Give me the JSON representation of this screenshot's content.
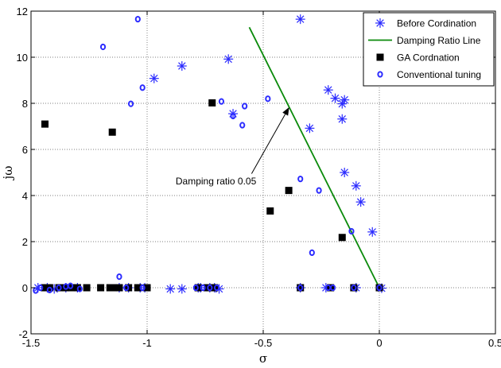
{
  "chart_data": {
    "type": "scatter",
    "title": "",
    "xlabel": "σ",
    "ylabel": "jω",
    "xlim": [
      -1.5,
      0.5
    ],
    "ylim": [
      -2,
      12
    ],
    "xticks": [
      -1.5,
      -1,
      -0.5,
      0,
      0.5
    ],
    "yticks": [
      -2,
      0,
      2,
      4,
      6,
      8,
      10,
      12
    ],
    "xtick_labels": [
      "-1.5",
      "-1",
      "-0.5",
      "0",
      "0.5"
    ],
    "ytick_labels": [
      "-2",
      "0",
      "2",
      "4",
      "6",
      "8",
      "10",
      "12"
    ],
    "grid": true,
    "legend_position": "top-right",
    "colors": {
      "blue": "#2b2bff",
      "green": "#0a8a0a",
      "black": "#000000"
    },
    "series": [
      {
        "name": "Before Cordination",
        "marker": "asterisk",
        "color": "#2b2bff",
        "points": [
          [
            -0.34,
            11.65
          ],
          [
            -0.85,
            9.62
          ],
          [
            -0.65,
            9.92
          ],
          [
            -0.97,
            9.08
          ],
          [
            -0.63,
            7.55
          ],
          [
            -0.3,
            6.92
          ],
          [
            -0.22,
            8.58
          ],
          [
            -0.19,
            8.22
          ],
          [
            -0.15,
            8.15
          ],
          [
            -0.16,
            7.98
          ],
          [
            -0.16,
            7.32
          ],
          [
            -0.15,
            5.0
          ],
          [
            -0.1,
            4.42
          ],
          [
            -0.08,
            3.72
          ],
          [
            -0.03,
            2.42
          ],
          [
            -1.47,
            0.0
          ],
          [
            -1.43,
            0.0
          ],
          [
            -1.4,
            -0.05
          ],
          [
            -1.35,
            0.0
          ],
          [
            -1.3,
            0.0
          ],
          [
            -1.12,
            0.0
          ],
          [
            -1.08,
            0.0
          ],
          [
            -1.03,
            0.0
          ],
          [
            -1.01,
            0.0
          ],
          [
            -0.9,
            -0.05
          ],
          [
            -0.85,
            -0.05
          ],
          [
            -0.78,
            0.0
          ],
          [
            -0.77,
            0.0
          ],
          [
            -0.73,
            0.0
          ],
          [
            -0.71,
            0.0
          ],
          [
            -0.69,
            -0.05
          ],
          [
            -0.34,
            0.0
          ],
          [
            -0.23,
            0.0
          ],
          [
            -0.1,
            0.0
          ],
          [
            0.01,
            -0.02
          ]
        ]
      },
      {
        "name": "Damping Ratio Line",
        "marker": "line",
        "color": "#0a8a0a",
        "points": [
          [
            -0.56,
            11.3
          ],
          [
            0.0,
            0.0
          ]
        ]
      },
      {
        "name": "GA Cordnation",
        "marker": "square",
        "color": "#000000",
        "points": [
          [
            -1.44,
            7.1
          ],
          [
            -1.15,
            6.75
          ],
          [
            -0.72,
            8.02
          ],
          [
            -0.39,
            4.22
          ],
          [
            -0.47,
            3.33
          ],
          [
            -0.16,
            2.18
          ],
          [
            -1.44,
            0.0
          ],
          [
            -1.42,
            0.0
          ],
          [
            -1.38,
            0.0
          ],
          [
            -1.35,
            0.0
          ],
          [
            -1.32,
            0.0
          ],
          [
            -1.3,
            0.0
          ],
          [
            -1.26,
            0.0
          ],
          [
            -1.2,
            0.0
          ],
          [
            -1.16,
            0.0
          ],
          [
            -1.14,
            0.0
          ],
          [
            -1.12,
            0.0
          ],
          [
            -1.08,
            0.0
          ],
          [
            -1.04,
            0.0
          ],
          [
            -1.0,
            0.0
          ],
          [
            -0.78,
            0.0
          ],
          [
            -0.74,
            0.0
          ],
          [
            -0.71,
            0.0
          ],
          [
            -0.34,
            0.0
          ],
          [
            -0.21,
            0.0
          ],
          [
            -0.11,
            0.0
          ],
          [
            0.0,
            0.0
          ]
        ]
      },
      {
        "name": "Conventional tuning",
        "marker": "circle",
        "color": "#2b2bff",
        "points": [
          [
            -1.04,
            11.65
          ],
          [
            -1.19,
            10.45
          ],
          [
            -1.02,
            8.68
          ],
          [
            -1.07,
            7.98
          ],
          [
            -0.68,
            8.08
          ],
          [
            -0.58,
            7.88
          ],
          [
            -0.63,
            7.45
          ],
          [
            -0.59,
            7.05
          ],
          [
            -0.48,
            8.2
          ],
          [
            -0.34,
            4.72
          ],
          [
            -0.26,
            4.22
          ],
          [
            -0.12,
            2.45
          ],
          [
            -0.29,
            1.52
          ],
          [
            -1.48,
            -0.12
          ],
          [
            -1.46,
            0.0
          ],
          [
            -1.42,
            -0.1
          ],
          [
            -1.38,
            0.0
          ],
          [
            -1.35,
            0.05
          ],
          [
            -1.33,
            0.08
          ],
          [
            -1.29,
            -0.05
          ],
          [
            -1.12,
            0.48
          ],
          [
            -1.09,
            0.0
          ],
          [
            -1.02,
            0.0
          ],
          [
            -0.79,
            0.0
          ],
          [
            -0.76,
            0.0
          ],
          [
            -0.73,
            0.0
          ],
          [
            -0.7,
            0.0
          ],
          [
            -0.34,
            0.0
          ],
          [
            -0.22,
            0.0
          ],
          [
            -0.2,
            0.0
          ],
          [
            -0.11,
            0.0
          ],
          [
            0.0,
            0.0
          ]
        ]
      }
    ],
    "annotations": [
      {
        "text": "Damping ratio 0.05",
        "anchor": [
          -0.86,
          4.62
        ],
        "arrow_to": [
          -0.39,
          7.8
        ]
      }
    ]
  }
}
